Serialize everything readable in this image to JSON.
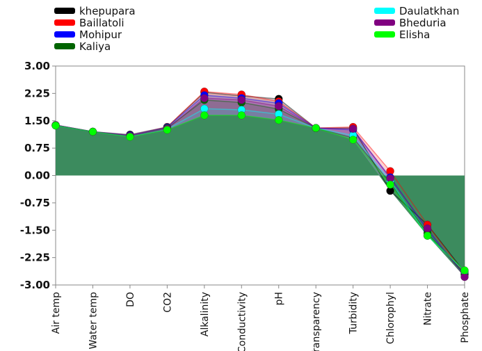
{
  "chart_data": {
    "type": "area",
    "title": "",
    "xlabel": "",
    "ylabel": "",
    "categories": [
      "Air temp",
      "Water temp",
      "DO",
      "CO2",
      "Alkalinity",
      "Conductivity",
      "pH",
      "Transparency",
      "Turbidity",
      "Chlorophyl",
      "Nitrate",
      "Phosphate"
    ],
    "yticks": [
      "3.00",
      "2.25",
      "1.50",
      "0.75",
      "0.00",
      "-0.75",
      "-1.50",
      "-2.25",
      "-3.00"
    ],
    "ylim": [
      -3.0,
      3.0
    ],
    "grid": false,
    "legend_position": "top",
    "series": [
      {
        "name": "khepupara",
        "color": "#000000",
        "values": [
          1.38,
          1.2,
          1.12,
          1.33,
          2.28,
          2.18,
          2.1,
          1.3,
          1.3,
          -0.42,
          -1.35,
          -2.65
        ]
      },
      {
        "name": "Baillatoli",
        "color": "#ff0000",
        "values": [
          1.38,
          1.2,
          1.1,
          1.33,
          2.3,
          2.22,
          2.03,
          1.3,
          1.33,
          0.12,
          -1.35,
          -2.7
        ]
      },
      {
        "name": "Mohipur",
        "color": "#0000ff",
        "values": [
          1.38,
          1.2,
          1.1,
          1.32,
          2.2,
          2.12,
          1.98,
          1.3,
          1.25,
          -0.05,
          -1.5,
          -2.72
        ]
      },
      {
        "name": "Kaliya",
        "color": "#006400",
        "values": [
          1.37,
          1.2,
          1.08,
          1.3,
          2.07,
          2.0,
          1.82,
          1.3,
          1.03,
          -0.2,
          -1.58,
          -2.7
        ]
      },
      {
        "name": "Daulatkhan",
        "color": "#00ffff",
        "values": [
          1.37,
          1.2,
          1.07,
          1.27,
          1.83,
          1.8,
          1.68,
          1.3,
          1.1,
          -0.15,
          -1.65,
          -2.62
        ]
      },
      {
        "name": "Bheduria",
        "color": "#800080",
        "values": [
          1.38,
          1.2,
          1.08,
          1.28,
          2.12,
          2.07,
          1.9,
          1.3,
          1.28,
          -0.08,
          -1.45,
          -2.78
        ]
      },
      {
        "name": "Elisha",
        "color": "#00ff00",
        "values": [
          1.37,
          1.2,
          1.06,
          1.25,
          1.65,
          1.65,
          1.52,
          1.3,
          0.98,
          -0.25,
          -1.65,
          -2.6
        ]
      }
    ]
  },
  "colors": {
    "area_fill": "#3a8a5c",
    "axis": "#888888",
    "background": "#ffffff"
  }
}
